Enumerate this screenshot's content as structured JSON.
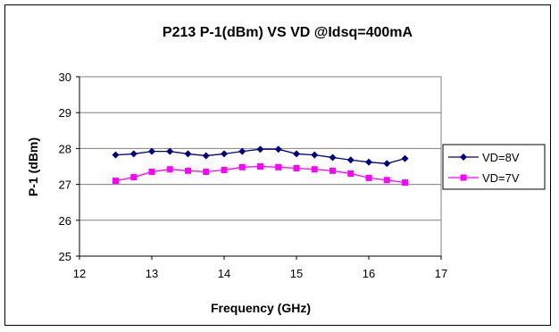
{
  "chart_data": {
    "type": "line",
    "title": "P213 P-1(dBm) VS VD @Idsq=400mA",
    "xlabel": "Frequency (GHz)",
    "ylabel": "P-1 (dBm)",
    "xlim": [
      12,
      17
    ],
    "ylim": [
      25,
      30
    ],
    "xticks": [
      "12",
      "13",
      "14",
      "15",
      "16",
      "17"
    ],
    "yticks": [
      "25",
      "26",
      "27",
      "28",
      "29",
      "30"
    ],
    "grid": "horizontal",
    "legend_position": "right",
    "series": [
      {
        "name": "VD=8V",
        "color": "#000080",
        "marker": "diamond",
        "x": [
          12.5,
          12.75,
          13.0,
          13.25,
          13.5,
          13.75,
          14.0,
          14.25,
          14.5,
          14.75,
          15.0,
          15.25,
          15.5,
          15.75,
          16.0,
          16.25,
          16.5
        ],
        "y": [
          27.82,
          27.85,
          27.92,
          27.92,
          27.85,
          27.8,
          27.85,
          27.92,
          27.98,
          27.98,
          27.85,
          27.82,
          27.75,
          27.68,
          27.62,
          27.58,
          27.72
        ]
      },
      {
        "name": "VD=7V",
        "color": "#FF00FF",
        "marker": "square",
        "x": [
          12.5,
          12.75,
          13.0,
          13.25,
          13.5,
          13.75,
          14.0,
          14.25,
          14.5,
          14.75,
          15.0,
          15.25,
          15.5,
          15.75,
          16.0,
          16.25,
          16.5
        ],
        "y": [
          27.1,
          27.2,
          27.35,
          27.42,
          27.38,
          27.35,
          27.4,
          27.48,
          27.5,
          27.48,
          27.45,
          27.42,
          27.38,
          27.3,
          27.18,
          27.12,
          27.05
        ]
      }
    ]
  }
}
